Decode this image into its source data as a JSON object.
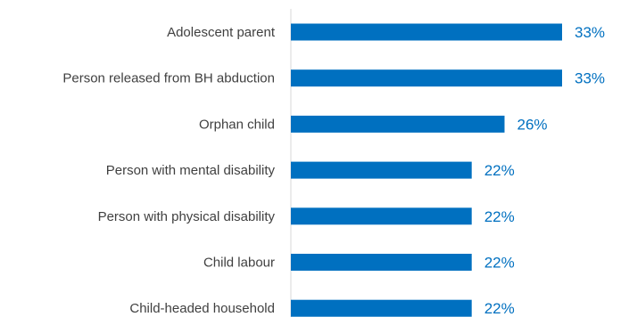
{
  "chart_data": {
    "type": "bar",
    "orientation": "horizontal",
    "categories": [
      "Adolescent parent",
      "Person released from BH abduction",
      "Orphan child",
      "Person with mental disability",
      "Person with physical disability",
      "Child labour",
      "Child-headed household"
    ],
    "values": [
      33,
      33,
      26,
      22,
      22,
      22,
      22
    ],
    "value_labels": [
      "33%",
      "33%",
      "26%",
      "22%",
      "22%",
      "22%",
      "22%"
    ],
    "unit": "%",
    "xlim": [
      0,
      33
    ],
    "grid": false,
    "legend": "none",
    "title": "",
    "xlabel": "",
    "ylabel": ""
  },
  "colors": {
    "bar": "#0070C0",
    "value_label": "#0070C0",
    "category_label": "#404040",
    "axis": "#D9D9D9"
  }
}
